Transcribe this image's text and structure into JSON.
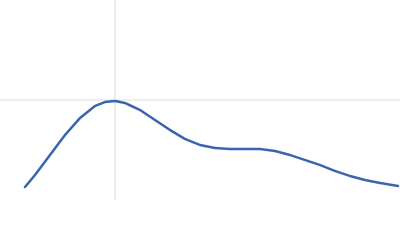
{
  "chart_data": {
    "type": "line",
    "x": [
      0.375,
      0.525,
      0.75,
      0.975,
      1.2,
      1.425,
      1.575,
      1.725,
      1.875,
      2.1,
      2.325,
      2.55,
      2.775,
      3.0,
      3.225,
      3.45,
      3.675,
      3.9,
      4.125,
      4.35,
      4.575,
      4.8,
      5.025,
      5.25,
      5.475,
      5.7,
      5.97
    ],
    "series": [
      {
        "color": "#3a64b0",
        "values": [
          0.143,
          0.275,
          0.495,
          0.715,
          0.902,
          1.034,
          1.078,
          1.089,
          1.067,
          0.99,
          0.88,
          0.77,
          0.671,
          0.605,
          0.572,
          0.561,
          0.561,
          0.561,
          0.539,
          0.495,
          0.44,
          0.385,
          0.319,
          0.264,
          0.22,
          0.187,
          0.154
        ]
      }
    ],
    "xlim": [
      0,
      6
    ],
    "ylim": [
      0,
      2.2
    ],
    "ref_x": 1.725,
    "ref_y": 1.1,
    "ref_color": "#dddddd"
  }
}
